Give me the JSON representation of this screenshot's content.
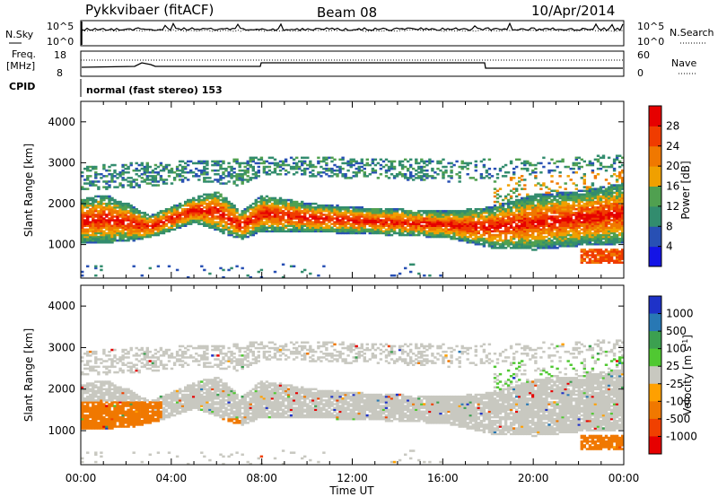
{
  "header": {
    "station": "Pykkvibaer (fitACF)",
    "beam": "Beam 08",
    "date": "10/Apr/2014"
  },
  "summary_panels": {
    "nsky_label": "N.Sky",
    "nsearch_label": "N.Search",
    "freq_label_1": "Freq.",
    "freq_label_2": "[MHz]",
    "nave_label": "Nave",
    "cpid_label": "CPID",
    "cpid_value": "normal (fast stereo) 153",
    "left_ticks_noise": [
      "10^5",
      "10^0"
    ],
    "right_ticks_noise": [
      "10^5",
      "10^0"
    ],
    "left_ticks_freq": [
      "18",
      "8"
    ],
    "right_ticks_nave": [
      "60",
      "0"
    ]
  },
  "chart_data": [
    {
      "type": "heatmap",
      "name": "power",
      "ylabel": "Slant Range [km]",
      "xlabel": "Time UT",
      "xlim": [
        0,
        24
      ],
      "ylim": [
        180,
        4500
      ],
      "x_ticks": [
        "00:00",
        "04:00",
        "08:00",
        "12:00",
        "16:00",
        "20:00",
        "00:00"
      ],
      "y_ticks": [
        1000,
        2000,
        3000,
        4000
      ],
      "colorbar": {
        "label": "Power [dB]",
        "range": [
          0,
          32
        ],
        "ticks": [
          4,
          8,
          12,
          16,
          20,
          24,
          28
        ],
        "colors": [
          "#1414e6",
          "#2850b4",
          "#328c6e",
          "#50a050",
          "#f0a000",
          "#f07800",
          "#f03c00",
          "#e60000"
        ]
      }
    },
    {
      "type": "heatmap",
      "name": "velocity",
      "ylabel": "Slant Range [km]",
      "xlabel": "Time UT",
      "xlim": [
        0,
        24
      ],
      "ylim": [
        180,
        4500
      ],
      "x_ticks": [
        "00:00",
        "04:00",
        "08:00",
        "12:00",
        "16:00",
        "20:00",
        "00:00"
      ],
      "y_ticks": [
        1000,
        2000,
        3000,
        4000
      ],
      "colorbar": {
        "label": "Velocity [m s",
        "label_sup": "-1",
        "label_close": "]",
        "ticks": [
          "1000",
          "500",
          "100",
          "25",
          "-25",
          "-100",
          "-500",
          "-1000"
        ],
        "colors": [
          "#1e32c8",
          "#2878b4",
          "#3ca050",
          "#50c832",
          "#c8c8c0",
          "#ffa000",
          "#f07800",
          "#f04000",
          "#e60000"
        ]
      }
    }
  ]
}
